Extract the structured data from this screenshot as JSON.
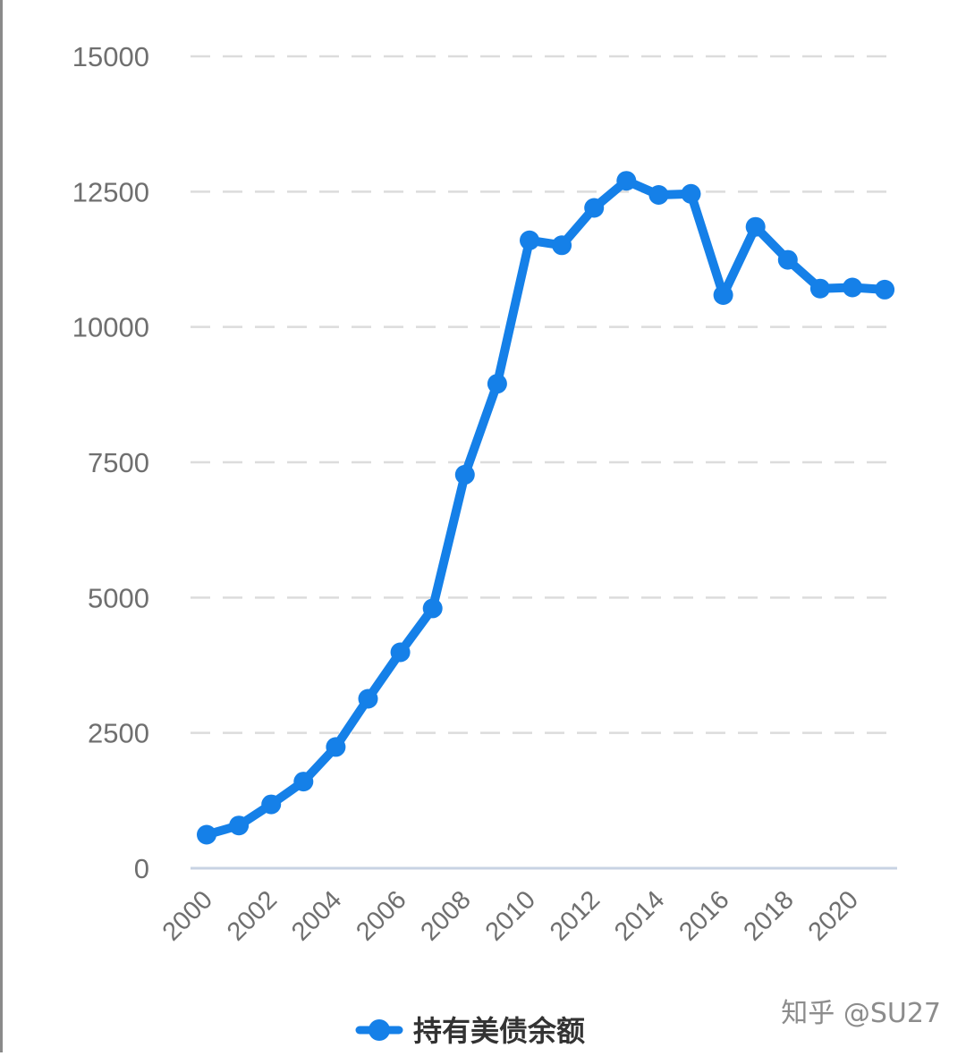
{
  "chart_data": {
    "type": "line",
    "title": "",
    "xlabel": "",
    "ylabel": "",
    "x": [
      2000,
      2001,
      2002,
      2003,
      2004,
      2005,
      2006,
      2007,
      2008,
      2009,
      2010,
      2011,
      2012,
      2013,
      2014,
      2015,
      2016,
      2017,
      2018,
      2019,
      2020,
      2021
    ],
    "series": [
      {
        "name": "持有美债余额",
        "values": [
          620,
          790,
          1180,
          1600,
          2240,
          3130,
          3990,
          4800,
          7270,
          8950,
          11600,
          11510,
          12200,
          12700,
          12440,
          12460,
          10590,
          11850,
          11240,
          10710,
          10730,
          10690
        ],
        "color": "#1580e8"
      }
    ],
    "ylim": [
      0,
      15000
    ],
    "yticks": [
      0,
      2500,
      5000,
      7500,
      10000,
      12500,
      15000
    ],
    "ytick_labels": [
      "0",
      "2500",
      "5000",
      "7500",
      "10000",
      "12500",
      "15000"
    ],
    "xticks": [
      2000,
      2002,
      2004,
      2006,
      2008,
      2010,
      2012,
      2014,
      2016,
      2018,
      2020
    ],
    "xtick_labels": [
      "2000",
      "2002",
      "2004",
      "2006",
      "2008",
      "2010",
      "2012",
      "2014",
      "2016",
      "2018",
      "2020"
    ],
    "grid": true,
    "legend": "bottom-center",
    "colors": {
      "grid": "#dcdcdc",
      "axis": "#c8d3e3",
      "series": "#1580e8"
    }
  },
  "watermark": "知乎 @SU27"
}
